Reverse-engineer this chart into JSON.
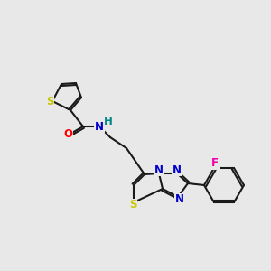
{
  "bg_color": "#e8e8e8",
  "bond_color": "#1a1a1a",
  "bond_width": 1.5,
  "atom_colors": {
    "S": "#c8c800",
    "O": "#ff0000",
    "N": "#0000cc",
    "F": "#ee00aa",
    "H": "#008888",
    "C": "#1a1a1a"
  },
  "font_size": 8.5,
  "figsize": [
    3.0,
    3.0
  ],
  "dpi": 100
}
